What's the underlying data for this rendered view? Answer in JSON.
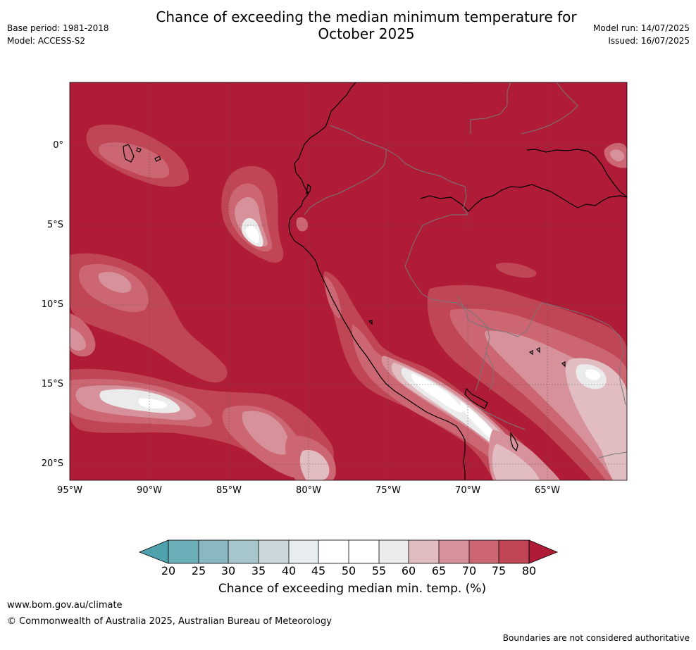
{
  "header": {
    "title_line1": "Chance of exceeding the median minimum temperature for",
    "title_line2": "October 2025",
    "base_period": "Base period: 1981-2018",
    "model": "Model: ACCESS-S2",
    "model_run": "Model run: 14/07/2025",
    "issued": "Issued: 16/07/2025"
  },
  "map": {
    "lat_labels": [
      "0°",
      "5°S",
      "10°S",
      "15°S",
      "20°S"
    ],
    "lon_labels": [
      "95°W",
      "90°W",
      "85°W",
      "80°W",
      "75°W",
      "70°W",
      "65°W"
    ],
    "colors": {
      "c80": "#b01c37",
      "c75": "#c04656",
      "c70": "#cc6673",
      "c65": "#d6919a",
      "c60": "#e1bcc1",
      "c55": "#ebebeb",
      "c50": "#ffffff",
      "c45": "#ffffff",
      "c40": "#e8eef0",
      "c35": "#c9d7dc",
      "c30": "#a7c6cb",
      "c25": "#8ab8c2",
      "c20": "#6aaeb8"
    }
  },
  "colorbar": {
    "labels": [
      "20",
      "25",
      "30",
      "35",
      "40",
      "45",
      "50",
      "55",
      "60",
      "65",
      "70",
      "75",
      "80"
    ],
    "title": "Chance of exceeding median min. temp. (%)"
  },
  "footer": {
    "website": "www.bom.gov.au/climate",
    "copyright": "© Commonwealth of Australia 2025, Australian Bureau of Meteorology",
    "disclaimer": "Boundaries are not considered authoritative"
  }
}
